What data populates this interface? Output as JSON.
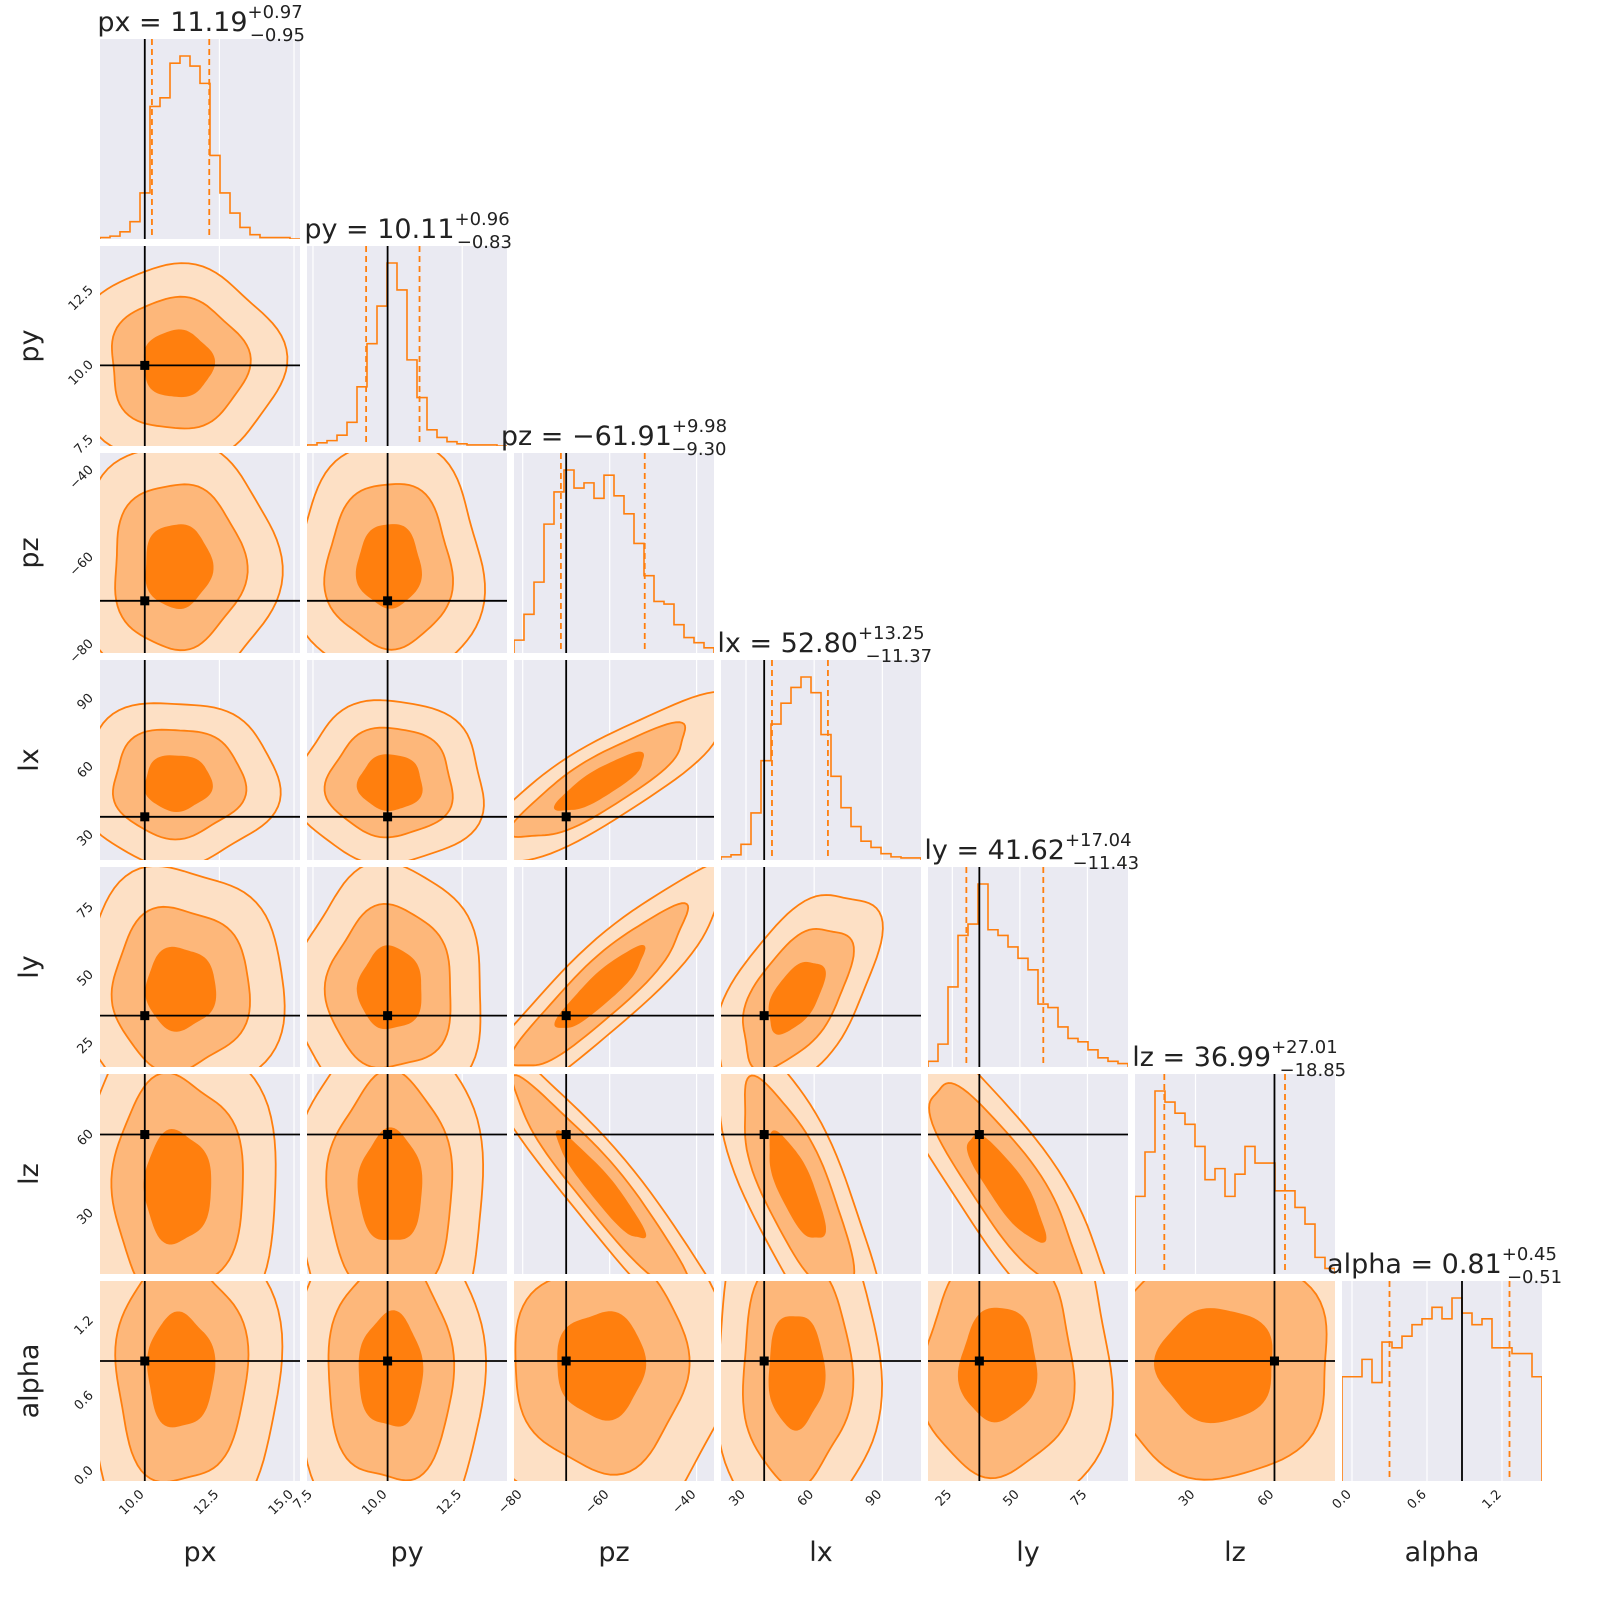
{
  "chart_data": {
    "type": "corner",
    "colors": {
      "hist_line": "#ff7f0e",
      "quantile_line": "#ff7f0e",
      "contour_fill": [
        "#fde0c5",
        "#fdb77a",
        "#ff7f0e"
      ],
      "contour_line": "#ff7f0e",
      "truth": "#000000",
      "panel_bg": "#eaeaf2",
      "grid": "#ffffff"
    },
    "parameters": [
      {
        "name": "px",
        "xlabel": "px",
        "range": [
          8.5,
          15.2
        ],
        "truth": 10.0,
        "ticks": [
          10.0,
          12.5,
          15.0
        ],
        "tick_labels": [
          "10.0",
          "12.5",
          "15.0"
        ],
        "row_tick_labels": [],
        "title": {
          "main": "px = 11.19",
          "plus": "+0.97",
          "minus": "−0.95"
        },
        "median": 11.19,
        "q_low": 10.24,
        "q_high": 12.16,
        "hist": {
          "counts": [
            1,
            2,
            5,
            12,
            32,
            92,
            98,
            122,
            127,
            120,
            108,
            58,
            32,
            18,
            8,
            3,
            1,
            1,
            1,
            0
          ],
          "bins_start": 8.5,
          "bins_end": 15.2
        }
      },
      {
        "name": "py",
        "xlabel": "py",
        "range": [
          7.3,
          14.0
        ],
        "truth": 10.0,
        "ticks": [
          7.5,
          10.0,
          12.5
        ],
        "tick_labels": [
          "7.5",
          "10.0",
          "12.5"
        ],
        "row_tick_labels": [
          "7.5",
          "10.0",
          "12.5"
        ],
        "title": {
          "main": "py = 10.11",
          "plus": "+0.96",
          "minus": "−0.83"
        },
        "median": 10.11,
        "q_low": 9.28,
        "q_high": 11.07,
        "hist": {
          "counts": [
            1,
            3,
            5,
            10,
            22,
            55,
            95,
            130,
            170,
            145,
            80,
            45,
            15,
            8,
            4,
            2,
            1,
            1,
            1,
            0
          ],
          "bins_start": 7.3,
          "bins_end": 14.0
        }
      },
      {
        "name": "pz",
        "xlabel": "pz",
        "range": [
          -82,
          -36
        ],
        "truth": -70.0,
        "ticks": [
          -80,
          -60,
          -40
        ],
        "tick_labels": [
          "−80",
          "−60",
          "−40"
        ],
        "row_tick_labels": [
          "−80",
          "−60",
          "−40"
        ],
        "title": {
          "main": "pz = −61.91",
          "plus": "+9.98",
          "minus": "−9.30"
        },
        "median": -61.91,
        "q_low": -71.21,
        "q_high": -51.93,
        "hist": {
          "counts": [
            10,
            30,
            55,
            100,
            125,
            142,
            128,
            132,
            120,
            138,
            122,
            108,
            85,
            60,
            40,
            38,
            22,
            12,
            8,
            4
          ],
          "bins_start": -82,
          "bins_end": -36
        }
      },
      {
        "name": "lx",
        "xlabel": "lx",
        "range": [
          19,
          107
        ],
        "truth": 38.0,
        "ticks": [
          30,
          60,
          90
        ],
        "tick_labels": [
          "30",
          "60",
          "90"
        ],
        "row_tick_labels": [
          "30",
          "60",
          "90"
        ],
        "title": {
          "main": "lx = 52.80",
          "plus": "+13.25",
          "minus": "−11.37"
        },
        "median": 52.8,
        "q_low": 41.43,
        "q_high": 66.05,
        "hist": {
          "counts": [
            3,
            5,
            15,
            45,
            95,
            130,
            150,
            165,
            175,
            160,
            120,
            80,
            50,
            32,
            18,
            12,
            6,
            3,
            2,
            2
          ],
          "bins_start": 19,
          "bins_end": 107
        }
      },
      {
        "name": "ly",
        "xlabel": "ly",
        "range": [
          16,
          90
        ],
        "truth": 35.0,
        "ticks": [
          25,
          50,
          75
        ],
        "tick_labels": [
          "25",
          "50",
          "75"
        ],
        "row_tick_labels": [
          "25",
          "50",
          "75"
        ],
        "title": {
          "main": "ly = 41.62",
          "plus": "+17.04",
          "minus": "−11.43"
        },
        "median": 41.62,
        "q_low": 30.19,
        "q_high": 58.66,
        "hist": {
          "counts": [
            5,
            20,
            70,
            115,
            125,
            160,
            120,
            115,
            105,
            95,
            85,
            55,
            52,
            35,
            25,
            22,
            15,
            8,
            5,
            3
          ],
          "bins_start": 16,
          "bins_end": 90
        }
      },
      {
        "name": "lz",
        "xlabel": "lz",
        "range": [
          7,
          83
        ],
        "truth": 60.0,
        "ticks": [
          30,
          60
        ],
        "tick_labels": [
          "30",
          "60"
        ],
        "row_tick_labels": [
          "30",
          "60"
        ],
        "title": {
          "main": "lz = 36.99",
          "plus": "+27.01",
          "minus": "−18.85"
        },
        "median": 36.99,
        "q_low": 18.14,
        "q_high": 64.0,
        "hist": {
          "counts": [
            70,
            110,
            165,
            155,
            145,
            135,
            115,
            85,
            95,
            70,
            90,
            115,
            100,
            100,
            75,
            75,
            60,
            45,
            15,
            5
          ],
          "bins_start": 7,
          "bins_end": 83
        }
      },
      {
        "name": "alpha",
        "xlabel": "alpha",
        "range": [
          -0.08,
          1.52
        ],
        "truth": 0.88,
        "ticks": [
          0.0,
          0.6,
          1.2
        ],
        "tick_labels": [
          "0.0",
          "0.6",
          "1.2"
        ],
        "row_tick_labels": [
          "0.0",
          "0.6",
          "1.2"
        ],
        "title": {
          "main": "alpha = 0.81",
          "plus": "+0.45",
          "minus": "−0.51"
        },
        "median": 0.81,
        "q_low": 0.3,
        "q_high": 1.26,
        "hist": {
          "counts": [
            90,
            90,
            105,
            85,
            120,
            115,
            125,
            135,
            140,
            150,
            140,
            158,
            145,
            135,
            140,
            115,
            115,
            110,
            110,
            90
          ],
          "bins_start": -0.08,
          "bins_end": 1.52
        }
      }
    ],
    "pairs": {
      "1,0": {
        "center": [
          11.1,
          10.05
        ],
        "sd": [
          1.15,
          1.1
        ],
        "rho": 0.0
      },
      "2,0": {
        "center": [
          11.1,
          -62.0
        ],
        "sd": [
          1.1,
          9.5
        ],
        "rho": 0.0
      },
      "2,1": {
        "center": [
          10.05,
          -62.0
        ],
        "sd": [
          1.05,
          9.5
        ],
        "rho": 0.0
      },
      "3,0": {
        "center": [
          11.1,
          53.0
        ],
        "sd": [
          1.1,
          12.0
        ],
        "rho": 0.0
      },
      "3,1": {
        "center": [
          10.1,
          53.0
        ],
        "sd": [
          1.05,
          12.0
        ],
        "rho": 0.0
      },
      "3,2": {
        "center": [
          -62.0,
          53.0
        ],
        "sd": [
          10.0,
          12.5
        ],
        "rho": 0.85
      },
      "4,0": {
        "center": [
          11.2,
          45.0
        ],
        "sd": [
          1.15,
          15.0
        ],
        "rho": 0.0
      },
      "4,1": {
        "center": [
          10.1,
          45.0
        ],
        "sd": [
          1.05,
          15.0
        ],
        "rho": 0.0
      },
      "4,2": {
        "center": [
          -62.0,
          45.0
        ],
        "sd": [
          10.0,
          15.0
        ],
        "rho": 0.9
      },
      "4,3": {
        "center": [
          52.0,
          42.0
        ],
        "sd": [
          12.0,
          13.0
        ],
        "rho": 0.55
      },
      "5,0": {
        "center": [
          11.1,
          40.0
        ],
        "sd": [
          1.1,
          21.0
        ],
        "rho": 0.0
      },
      "5,1": {
        "center": [
          10.1,
          40.0
        ],
        "sd": [
          1.05,
          21.0
        ],
        "rho": 0.0
      },
      "5,2": {
        "center": [
          -62.0,
          40.0
        ],
        "sd": [
          10.0,
          20.0
        ],
        "rho": -0.94
      },
      "5,3": {
        "center": [
          52.0,
          40.0
        ],
        "sd": [
          12.0,
          20.0
        ],
        "rho": -0.75
      },
      "5,4": {
        "center": [
          45.0,
          40.0
        ],
        "sd": [
          14.0,
          20.0
        ],
        "rho": -0.85
      },
      "6,0": {
        "center": [
          11.2,
          0.8
        ],
        "sd": [
          1.1,
          0.45
        ],
        "rho": 0.0
      },
      "6,1": {
        "center": [
          10.1,
          0.8
        ],
        "sd": [
          1.05,
          0.45
        ],
        "rho": 0.0
      },
      "6,2": {
        "center": [
          -62.0,
          0.85
        ],
        "sd": [
          10.0,
          0.42
        ],
        "rho": 0.0
      },
      "6,3": {
        "center": [
          52.0,
          0.8
        ],
        "sd": [
          12.0,
          0.45
        ],
        "rho": 0.0
      },
      "6,4": {
        "center": [
          42.0,
          0.85
        ],
        "sd": [
          14.0,
          0.45
        ],
        "rho": 0.05
      },
      "6,5": {
        "center": [
          38.0,
          0.85
        ],
        "sd": [
          22.0,
          0.45
        ],
        "rho": 0.0
      }
    }
  }
}
